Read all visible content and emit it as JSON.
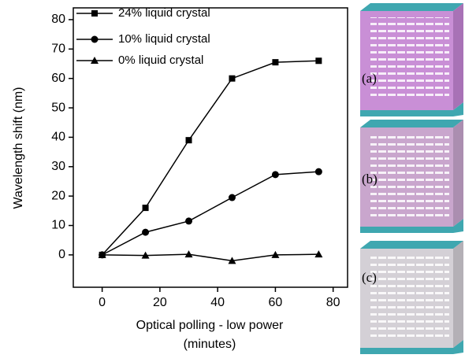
{
  "chart_data": {
    "type": "line",
    "ylabel": "Wavelength shift (nm)",
    "xlabel": [
      "Optical polling - low power",
      "(minutes)"
    ],
    "xlim": [
      -10,
      85
    ],
    "xticks": [
      0,
      20,
      40,
      60,
      80
    ],
    "ylim": [
      -11,
      84
    ],
    "yticks": [
      0,
      10,
      20,
      30,
      40,
      50,
      60,
      70,
      80
    ],
    "legend": "upper left",
    "series": [
      {
        "name": "24% liquid crystal",
        "color": "#000000",
        "marker": "square",
        "x": [
          0,
          15,
          30,
          45,
          60,
          75
        ],
        "values": [
          0,
          16,
          39,
          60,
          65.5,
          66
        ]
      },
      {
        "name": "10% liquid crystal",
        "color": "#000000",
        "marker": "circle",
        "x": [
          0,
          15,
          30,
          45,
          60,
          75
        ],
        "values": [
          0,
          7.7,
          11.5,
          19.5,
          27.3,
          28.3
        ]
      },
      {
        "name": "0% liquid crystal",
        "color": "#000000",
        "marker": "triangle",
        "x": [
          0,
          15,
          30,
          45,
          60,
          75
        ],
        "values": [
          0,
          -0.2,
          0.2,
          -2,
          0,
          0.2
        ]
      }
    ]
  },
  "insets": {
    "labels": [
      "(a)",
      "(b)",
      "(c)"
    ]
  }
}
